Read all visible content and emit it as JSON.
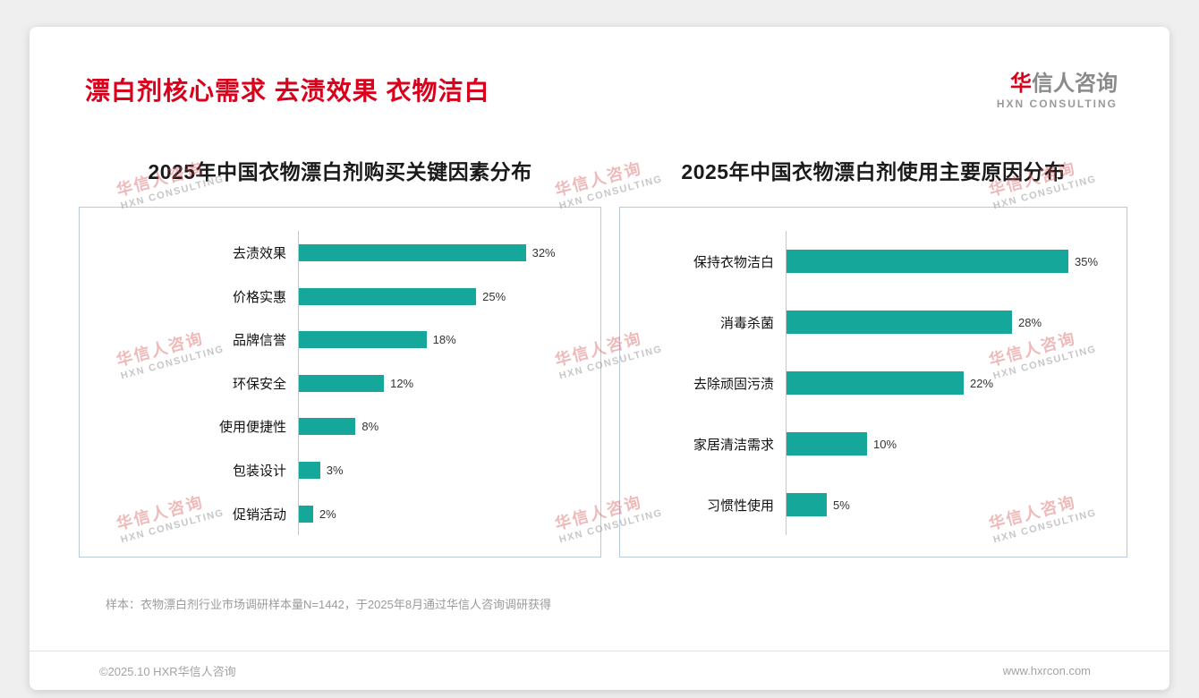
{
  "page": {
    "title": "漂白剂核心需求 去渍效果 衣物洁白",
    "logo": {
      "cn_first": "华",
      "cn_rest": "信人咨询",
      "en": "HXN CONSULTING"
    },
    "watermark": {
      "cn": "华信人咨询",
      "en": "HXN CONSULTING"
    },
    "footer": {
      "note": "样本：衣物漂白剂行业市场调研样本量N=1442，于2025年8月通过华信人咨询调研获得",
      "copyright": "©2025.10 HXR华信人咨询",
      "website": "www.hxrcon.com"
    }
  },
  "chart_data": [
    {
      "type": "bar",
      "orientation": "horizontal",
      "title": "2025年中国衣物漂白剂购买关键因素分布",
      "categories": [
        "去渍效果",
        "价格实惠",
        "品牌信誉",
        "环保安全",
        "使用便捷性",
        "包装设计",
        "促销活动"
      ],
      "values": [
        32,
        25,
        18,
        12,
        8,
        3,
        2
      ],
      "unit": "%",
      "bar_color": "#15a89a",
      "xlim": [
        0,
        40
      ],
      "grid": false,
      "legend": false
    },
    {
      "type": "bar",
      "orientation": "horizontal",
      "title": "2025年中国衣物漂白剂使用主要原因分布",
      "categories": [
        "保持衣物洁白",
        "消毒杀菌",
        "去除顽固污渍",
        "家居清洁需求",
        "习惯性使用"
      ],
      "values": [
        35,
        28,
        22,
        10,
        5
      ],
      "unit": "%",
      "bar_color": "#15a89a",
      "xlim": [
        0,
        40
      ],
      "grid": false,
      "legend": false
    }
  ]
}
